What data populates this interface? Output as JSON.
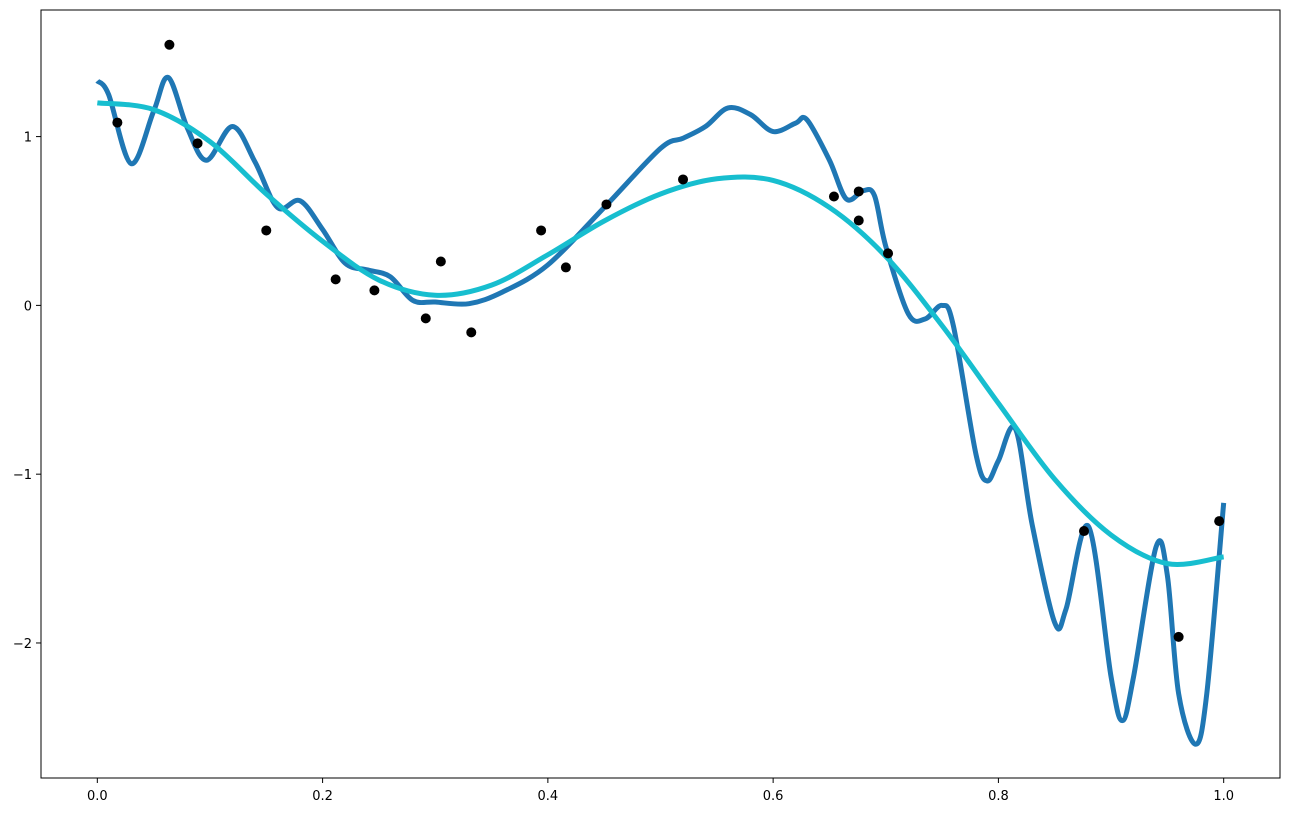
{
  "chart_data": {
    "type": "line",
    "xlim": [
      -0.05,
      1.05
    ],
    "ylim": [
      -2.8,
      1.75
    ],
    "xticks": [
      {
        "value": 0,
        "label": "0.0"
      },
      0.2,
      0.4,
      0.6,
      0.8,
      {
        "value": 1,
        "label": "1.0"
      }
    ],
    "yticks": [
      {
        "value": -2,
        "label": "−2"
      },
      {
        "value": -1,
        "label": "−1"
      },
      0,
      1
    ],
    "series": [
      {
        "color": "#1f77b4",
        "x": [
          0,
          0.01,
          0.03,
          0.05,
          0.063,
          0.08,
          0.097,
          0.12,
          0.14,
          0.16,
          0.18,
          0.2,
          0.22,
          0.24,
          0.26,
          0.28,
          0.3,
          0.33,
          0.36,
          0.4,
          0.45,
          0.5,
          0.52,
          0.54,
          0.56,
          0.58,
          0.6,
          0.62,
          0.63,
          0.65,
          0.665,
          0.68,
          0.69,
          0.7,
          0.72,
          0.735,
          0.75,
          0.76,
          0.78,
          0.79,
          0.8,
          0.815,
          0.83,
          0.85,
          0.86,
          0.88,
          0.9,
          0.91,
          0.92,
          0.94,
          0.95,
          0.96,
          0.975,
          0.985,
          1.0
        ],
        "values": [
          1.33,
          1.25,
          0.84,
          1.15,
          1.35,
          1.05,
          0.86,
          1.06,
          0.85,
          0.58,
          0.62,
          0.45,
          0.25,
          0.21,
          0.17,
          0.03,
          0.02,
          0.01,
          0.08,
          0.24,
          0.58,
          0.93,
          0.99,
          1.06,
          1.17,
          1.13,
          1.03,
          1.08,
          1.1,
          0.86,
          0.63,
          0.68,
          0.65,
          0.35,
          -0.05,
          -0.08,
          0.0,
          -0.12,
          -0.88,
          -1.04,
          -0.92,
          -0.73,
          -1.3,
          -1.88,
          -1.8,
          -1.31,
          -2.2,
          -2.46,
          -2.2,
          -1.43,
          -1.6,
          -2.3,
          -2.6,
          -2.3,
          -1.17
        ]
      },
      {
        "color": "#17becf",
        "x": [
          0,
          0.05,
          0.1,
          0.15,
          0.2,
          0.25,
          0.3,
          0.35,
          0.4,
          0.45,
          0.5,
          0.55,
          0.6,
          0.65,
          0.7,
          0.75,
          0.8,
          0.85,
          0.9,
          0.95,
          1.0
        ],
        "values": [
          1.2,
          1.16,
          0.97,
          0.66,
          0.38,
          0.15,
          0.06,
          0.12,
          0.3,
          0.5,
          0.66,
          0.75,
          0.74,
          0.58,
          0.29,
          -0.12,
          -0.58,
          -1.03,
          -1.36,
          -1.53,
          -1.49
        ]
      }
    ],
    "scatter": {
      "color": "#000000",
      "x": [
        0.0178,
        0.064,
        0.089,
        0.15,
        0.2116,
        0.246,
        0.2916,
        0.305,
        0.332,
        0.394,
        0.416,
        0.452,
        0.52,
        0.654,
        0.676,
        0.676,
        0.702,
        0.876,
        0.96,
        0.996
      ],
      "y": [
        1.083,
        1.544,
        0.96,
        0.444,
        0.154,
        0.089,
        -0.077,
        0.26,
        -0.16,
        0.444,
        0.225,
        0.598,
        0.746,
        0.645,
        0.675,
        0.503,
        0.308,
        -1.337,
        -1.964,
        -1.278
      ]
    }
  }
}
